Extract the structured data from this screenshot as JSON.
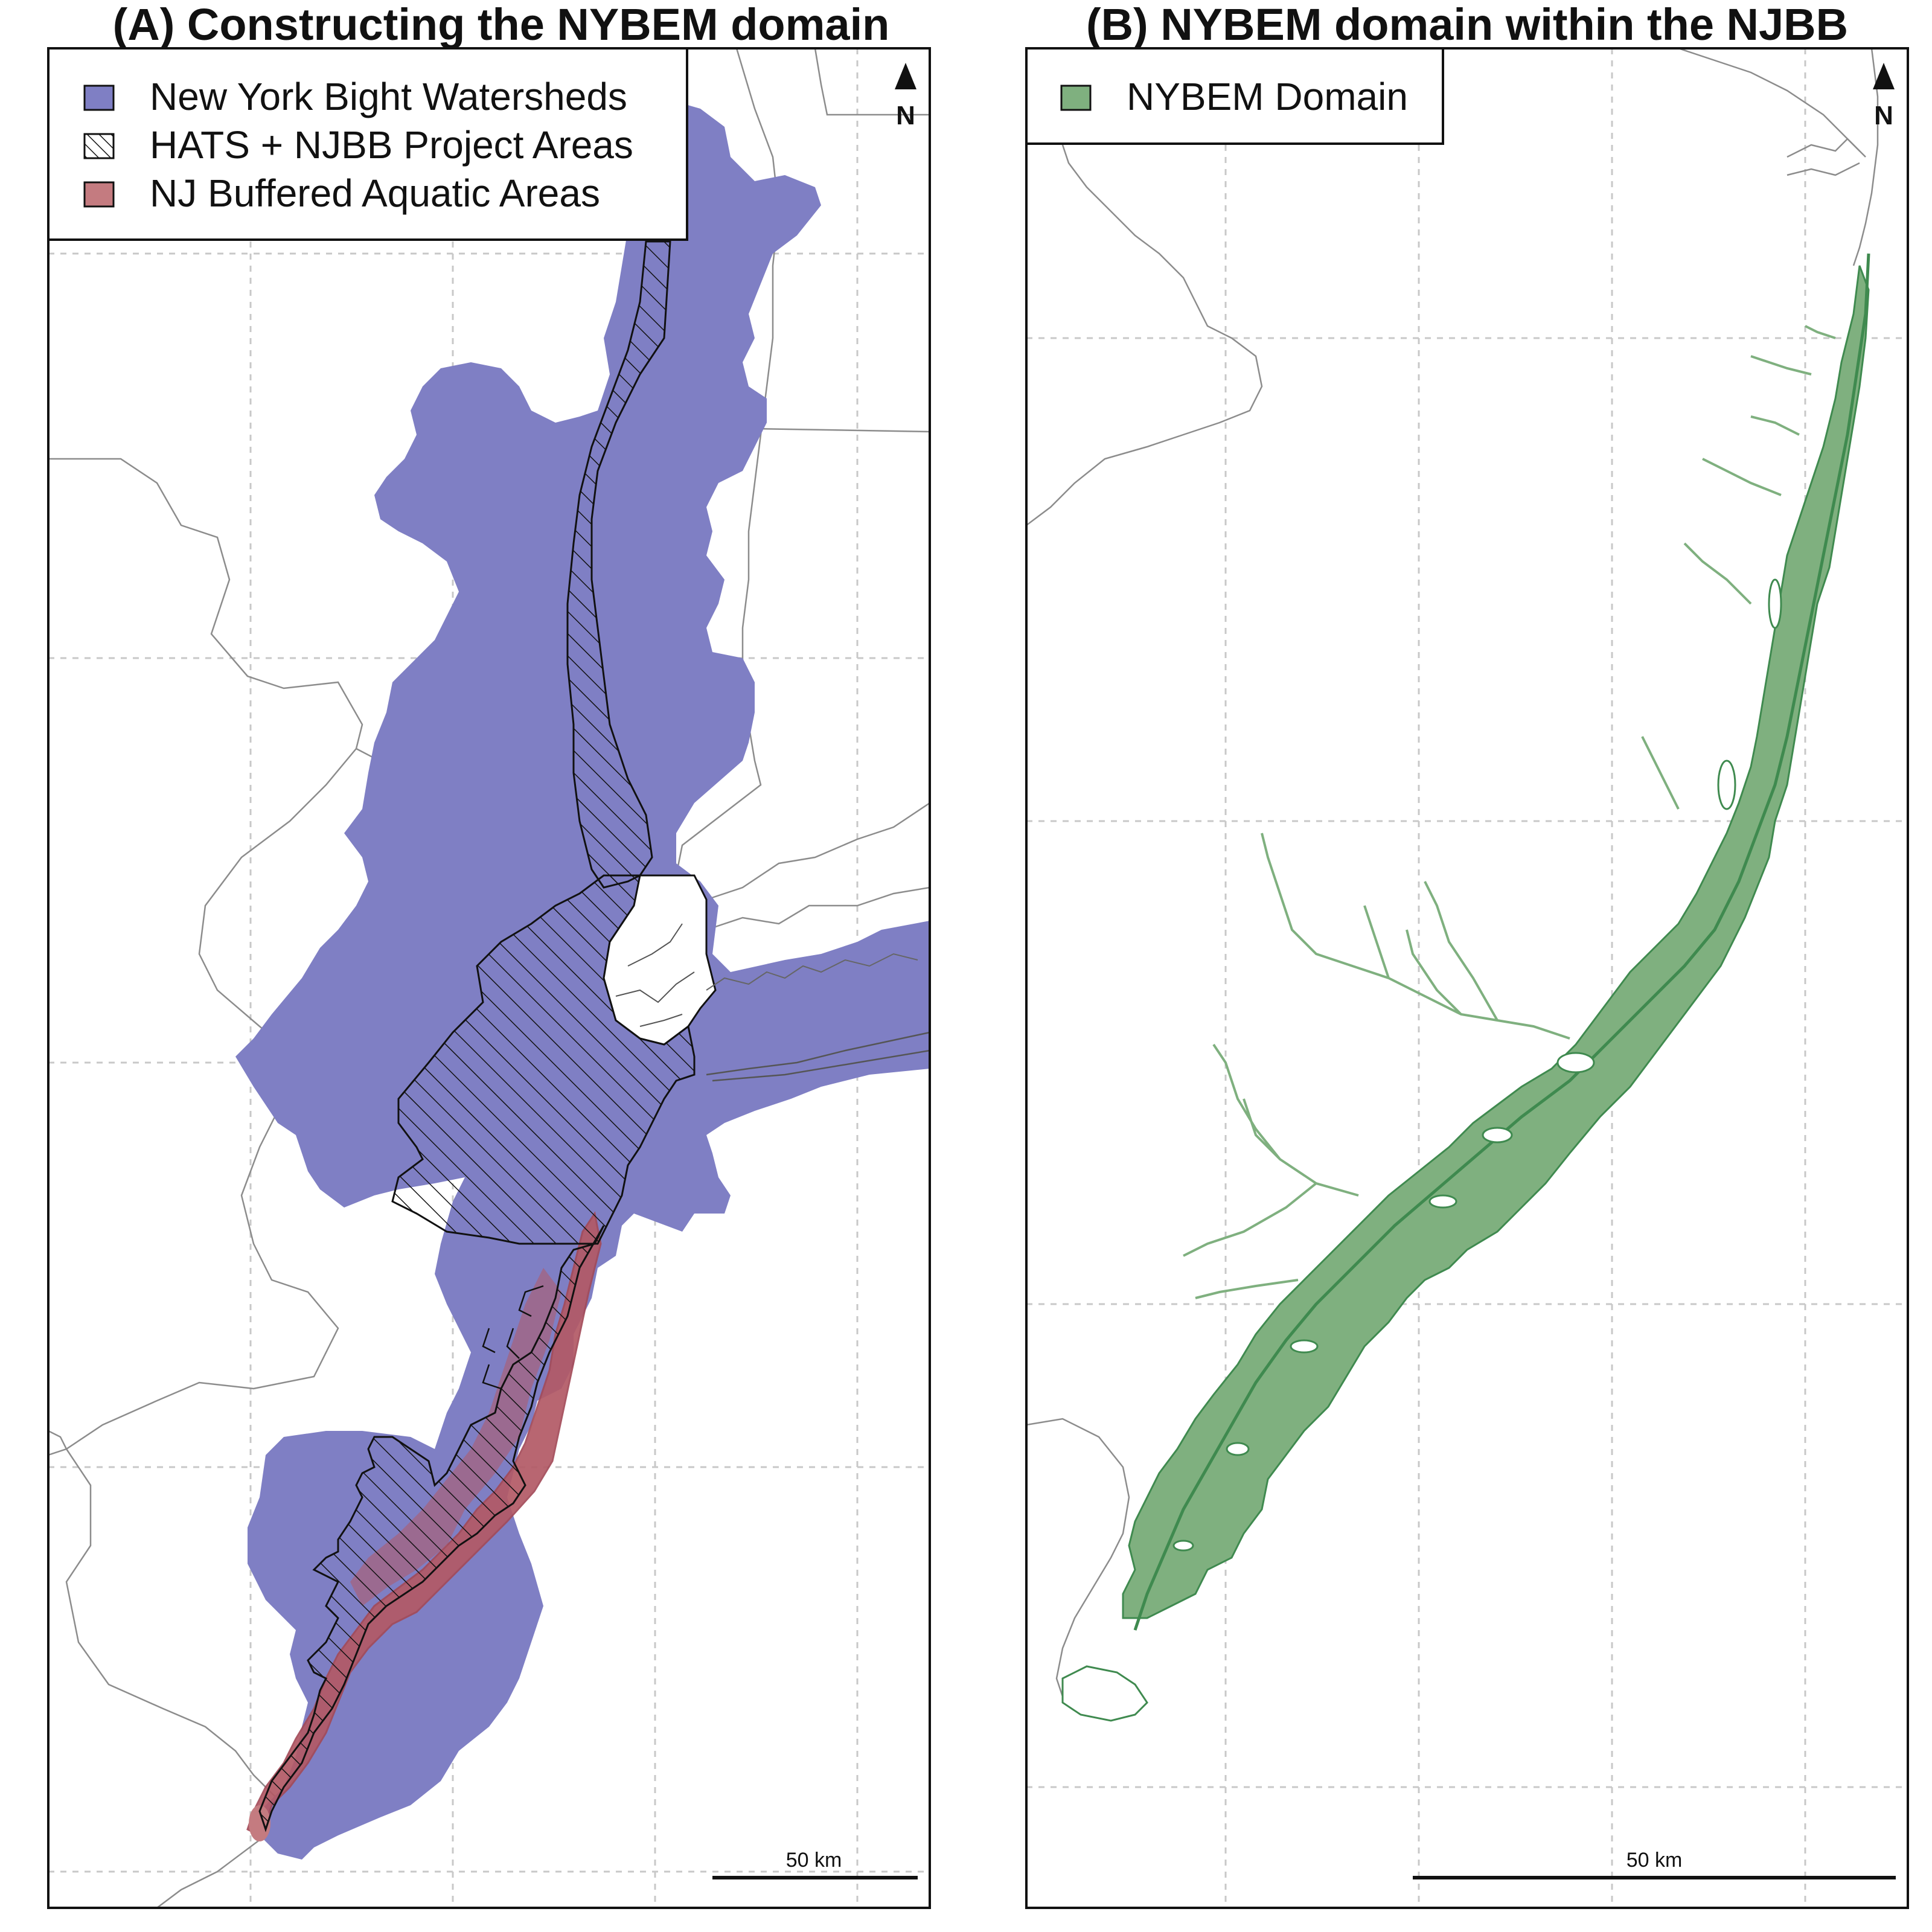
{
  "panel_a": {
    "title": "(A) Constructing the NYBEM domain",
    "legend": [
      {
        "label": "New York Bight Watersheds",
        "color": "#7f7fc4",
        "pattern": "solid"
      },
      {
        "label": "HATS + NJBB Project Areas",
        "color": "#ffffff",
        "pattern": "hatched"
      },
      {
        "label": "NJ Buffered Aquatic Areas",
        "color": "#c47b80",
        "pattern": "solid"
      }
    ],
    "north_label": "N",
    "scale_label": "50 km"
  },
  "panel_b": {
    "title": "(B) NYBEM domain within the NJBB",
    "legend": [
      {
        "label": "NYBEM Domain",
        "color": "#7fb07f",
        "pattern": "solid"
      }
    ],
    "north_label": "N",
    "scale_label": "50 km"
  },
  "colors": {
    "watershed": "#7f7fc4",
    "buffered_aquatic": "#b35a66",
    "nybem_domain": "#7fb07f",
    "nybem_outline": "#3f8a4f",
    "boundary_line": "#8c8c8c",
    "grid_line": "#c8c8c8"
  }
}
